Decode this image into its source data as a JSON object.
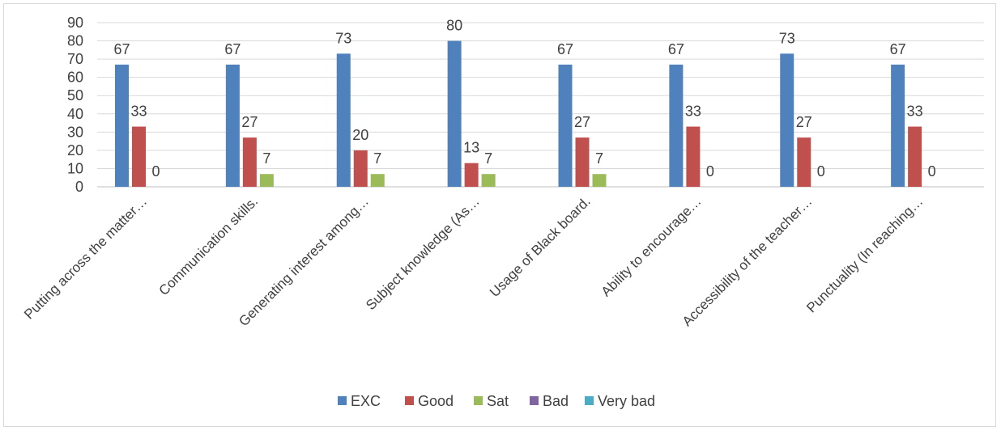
{
  "chart_data": {
    "type": "bar",
    "title": "",
    "xlabel": "",
    "ylabel": "",
    "ylim": [
      0,
      90
    ],
    "ytick_step": 10,
    "grid": true,
    "legend_position": "bottom",
    "categories": [
      "Putting across the matter…",
      "Communication skills.",
      "Generating interest among…",
      "Subject knowledge (As…",
      "Usage of Black board.",
      "Ability to encourage…",
      "Accessibility of the teacher…",
      "Punctuality (In reaching…"
    ],
    "series": [
      {
        "name": "EXC",
        "color": "#4f81bd",
        "values": [
          67,
          67,
          73,
          80,
          67,
          67,
          73,
          67
        ]
      },
      {
        "name": "Good",
        "color": "#c0504d",
        "values": [
          33,
          27,
          20,
          13,
          27,
          33,
          27,
          33
        ]
      },
      {
        "name": "Sat",
        "color": "#9bbb59",
        "values": [
          0,
          7,
          7,
          7,
          7,
          0,
          0,
          0
        ]
      },
      {
        "name": "Bad",
        "color": "#8064a2",
        "values": [
          null,
          null,
          null,
          null,
          null,
          null,
          null,
          null
        ]
      },
      {
        "name": "Very bad",
        "color": "#4bacc6",
        "values": [
          null,
          null,
          null,
          null,
          null,
          null,
          null,
          null
        ]
      }
    ]
  }
}
